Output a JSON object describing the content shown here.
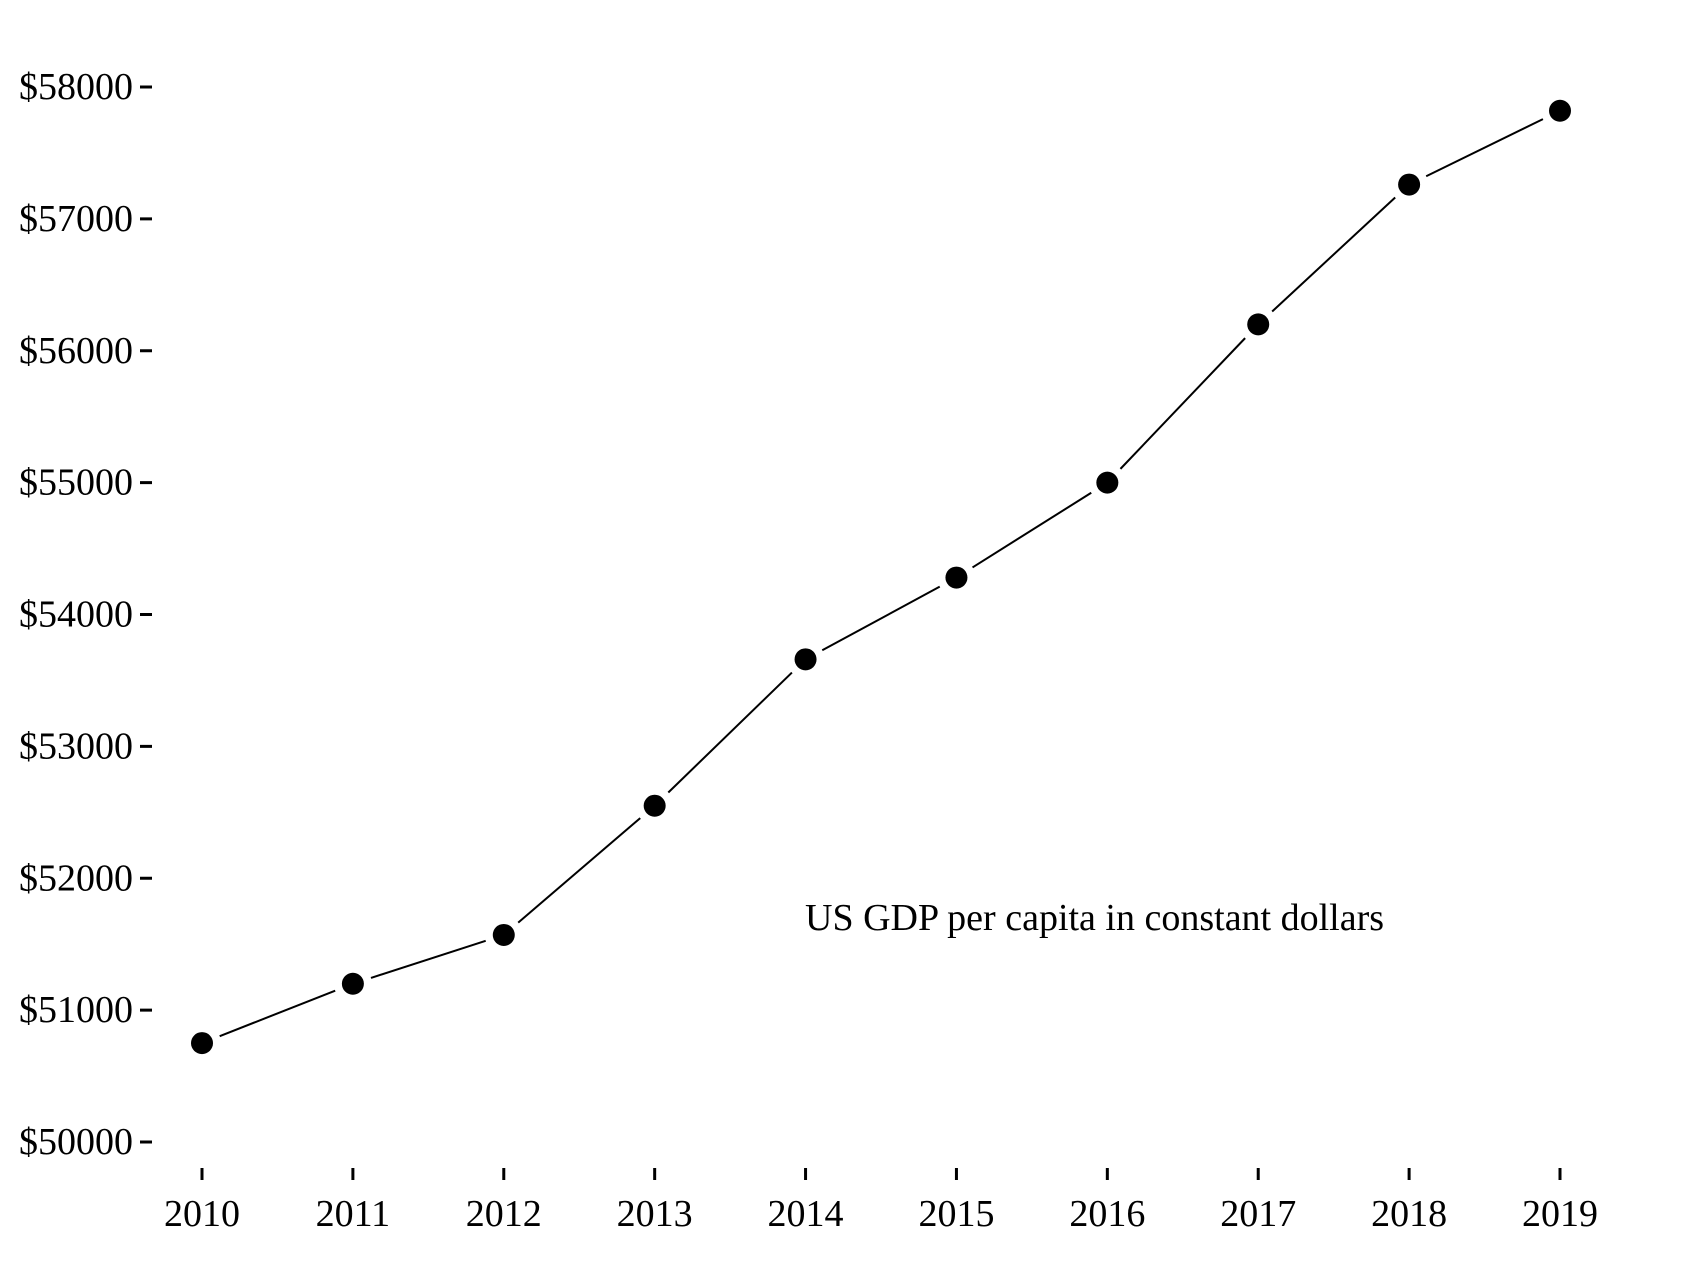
{
  "chart_data": {
    "type": "line",
    "x": [
      2010,
      2011,
      2012,
      2013,
      2014,
      2015,
      2016,
      2017,
      2018,
      2019
    ],
    "series": [
      {
        "values": [
          50750,
          51200,
          51570,
          52550,
          53660,
          54280,
          55000,
          56200,
          57260,
          57820
        ]
      }
    ],
    "x_tick_labels": [
      "2010",
      "2011",
      "2012",
      "2013",
      "2014",
      "2015",
      "2016",
      "2017",
      "2018",
      "2019"
    ],
    "y_ticks": [
      50000,
      51000,
      52000,
      53000,
      54000,
      55000,
      56000,
      57000,
      58000
    ],
    "y_tick_labels": [
      "$50000",
      "$51000",
      "$52000",
      "$53000",
      "$54000",
      "$55000",
      "$56000",
      "$57000",
      "$58000"
    ],
    "ylim": [
      50000,
      58000
    ],
    "annotation": "US GDP per capita in constant dollars",
    "grid": false,
    "line_color": "#000000",
    "marker_color": "#000000"
  }
}
